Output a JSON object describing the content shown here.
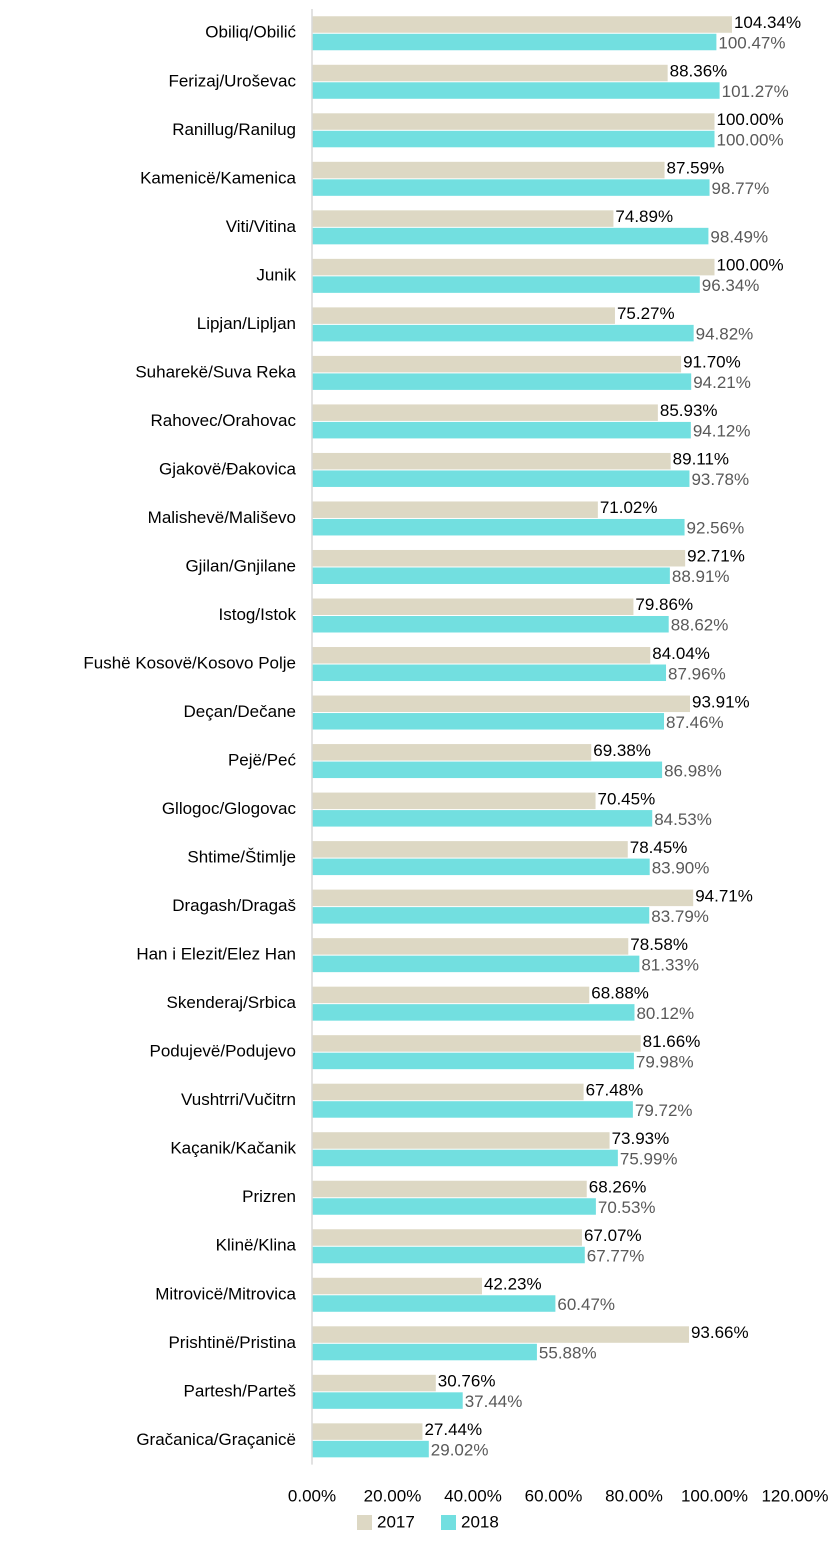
{
  "chart_data": {
    "type": "hbar",
    "categories": [
      "Obiliq/Obilić",
      "Ferizaj/Uroševac",
      "Ranillug/Ranilug",
      "Kamenicë/Kamenica",
      "Viti/Vitina",
      "Junik",
      "Lipjan/Lipljan",
      "Suharekë/Suva Reka",
      "Rahovec/Orahovac",
      "Gjakovë/Đakovica",
      "Malishevë/Mališevo",
      "Gjilan/Gnjilane",
      "Istog/Istok",
      "Fushë Kosovë/Kosovo Polje",
      "Deçan/Dečane",
      "Pejë/Peć",
      "Gllogoc/Glogovac",
      "Shtime/Štimlje",
      "Dragash/Dragaš",
      "Han i Elezit/Elez Han",
      "Skenderaj/Srbica",
      "Podujevë/Podujevo",
      "Vushtrri/Vučitrn",
      "Kaçanik/Kačanik",
      "Prizren",
      "Klinë/Klina",
      "Mitrovicë/Mitrovica",
      "Prishtinë/Pristina",
      "Partesh/Parteš",
      "Gračanica/Graçanicë"
    ],
    "series": [
      {
        "name": "2017",
        "color": "#ddd8c4",
        "label_color": "#000000",
        "values": [
          104.34,
          88.36,
          100.0,
          87.59,
          74.89,
          100.0,
          75.27,
          91.7,
          85.93,
          89.11,
          71.02,
          92.71,
          79.86,
          84.04,
          93.91,
          69.38,
          70.45,
          78.45,
          94.71,
          78.58,
          68.88,
          81.66,
          67.48,
          73.93,
          68.26,
          67.07,
          42.23,
          93.66,
          30.76,
          27.44
        ],
        "value_labels": [
          "104.34%",
          "88.36%",
          "100.00%",
          "87.59%",
          "74.89%",
          "100.00%",
          "75.27%",
          "91.70%",
          "85.93%",
          "89.11%",
          "71.02%",
          "92.71%",
          "79.86%",
          "84.04%",
          "93.91%",
          "69.38%",
          "70.45%",
          "78.45%",
          "94.71%",
          "78.58%",
          "68.88%",
          "81.66%",
          "67.48%",
          "73.93%",
          "68.26%",
          "67.07%",
          "42.23%",
          "93.66%",
          "30.76%",
          "27.44%"
        ]
      },
      {
        "name": "2018",
        "color": "#72dfe0",
        "label_color": "#595959",
        "values": [
          100.47,
          101.27,
          100.0,
          98.77,
          98.49,
          96.34,
          94.82,
          94.21,
          94.12,
          93.78,
          92.56,
          88.91,
          88.62,
          87.96,
          87.46,
          86.98,
          84.53,
          83.9,
          83.79,
          81.33,
          80.12,
          79.98,
          79.72,
          75.99,
          70.53,
          67.77,
          60.47,
          55.88,
          37.44,
          29.02
        ],
        "value_labels": [
          "100.47%",
          "101.27%",
          "100.00%",
          "98.77%",
          "98.49%",
          "96.34%",
          "94.82%",
          "94.21%",
          "94.12%",
          "93.78%",
          "92.56%",
          "88.91%",
          "88.62%",
          "87.96%",
          "87.46%",
          "86.98%",
          "84.53%",
          "83.90%",
          "83.79%",
          "81.33%",
          "80.12%",
          "79.98%",
          "79.72%",
          "75.99%",
          "70.53%",
          "67.77%",
          "60.47%",
          "55.88%",
          "37.44%",
          "29.02%"
        ]
      }
    ],
    "xlim": [
      0,
      120
    ],
    "xticks": [
      {
        "value": 0,
        "label": "0.00%"
      },
      {
        "value": 20,
        "label": "20.00%"
      },
      {
        "value": 40,
        "label": "40.00%"
      },
      {
        "value": 60,
        "label": "60.00%"
      },
      {
        "value": 80,
        "label": "80.00%"
      },
      {
        "value": 100,
        "label": "100.00%"
      },
      {
        "value": 120,
        "label": "120.00%"
      }
    ]
  }
}
